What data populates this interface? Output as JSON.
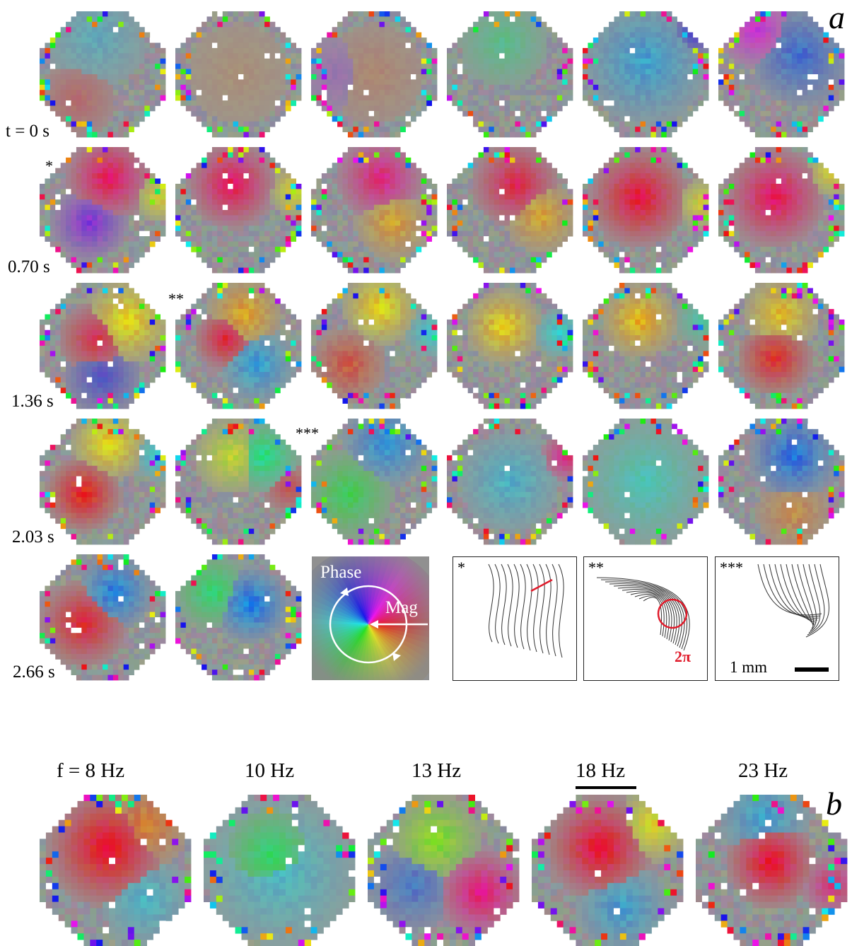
{
  "panel_a_label": "a",
  "panel_b_label": "b",
  "time_labels": [
    "t = 0 s",
    "0.70 s",
    "1.36 s",
    "2.03 s",
    "2.66 s"
  ],
  "markers": [
    "*",
    "**",
    "***"
  ],
  "phase_key": {
    "phase_label": "Phase",
    "mag_label": "Mag"
  },
  "contour_panels": [
    "*",
    "**",
    "***"
  ],
  "two_pi": "2π",
  "scale_bar": "1 mm",
  "frequencies": [
    "f = 8 Hz",
    "10 Hz",
    "13 Hz",
    "18 Hz",
    "23 Hz"
  ],
  "highlighted_frequency": "18 Hz"
}
